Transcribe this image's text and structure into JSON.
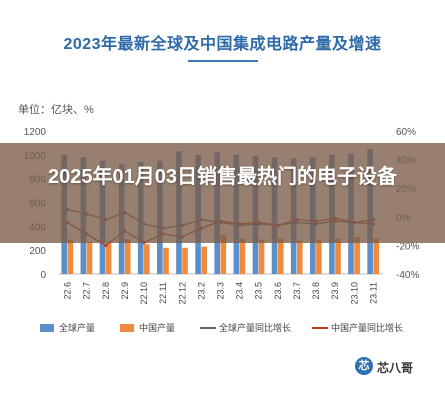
{
  "chart_data": {
    "type": "bar",
    "title": "2023年最新全球及中国集成电路产量及增速",
    "unit_label": "单位：亿块、%",
    "categories": [
      "22.6",
      "22.7",
      "22.8",
      "22.9",
      "22.10",
      "22.11",
      "22.12",
      "23.2",
      "23.3",
      "23.4",
      "23.5",
      "23.6",
      "23.7",
      "23.8",
      "23.9",
      "23.10",
      "23.11"
    ],
    "left_axis": {
      "ylim": [
        0,
        1200
      ],
      "ticks": [
        "0",
        "200",
        "400",
        "600",
        "800",
        "1000",
        "1200"
      ]
    },
    "right_axis": {
      "ylim": [
        -40,
        60
      ],
      "ticks": [
        "-40%",
        "-20%",
        "0%",
        "20%",
        "40%",
        "60%"
      ]
    },
    "series": [
      {
        "name": "全球产量",
        "kind": "bar",
        "axis": "left",
        "color": "#5b8fc9",
        "values": [
          1000,
          980,
          950,
          920,
          940,
          950,
          1030,
          1000,
          1020,
          1000,
          990,
          980,
          970,
          980,
          1000,
          1010,
          1050
        ]
      },
      {
        "name": "中国产量",
        "kind": "bar",
        "axis": "left",
        "color": "#f08a3c",
        "values": [
          290,
          270,
          270,
          290,
          250,
          220,
          220,
          230,
          330,
          300,
          290,
          300,
          280,
          290,
          300,
          310,
          300
        ]
      },
      {
        "name": "全球产量同比增长",
        "kind": "line",
        "axis": "right",
        "color": "#666666",
        "values": [
          5,
          2,
          -2,
          3,
          -5,
          -8,
          -6,
          -2,
          -4,
          -6,
          -5,
          -6,
          -4,
          -5,
          -3,
          -4,
          -2
        ]
      },
      {
        "name": "中国产量同比增长",
        "kind": "line",
        "axis": "right",
        "color": "#c0392b",
        "values": [
          -4,
          -12,
          -20,
          -10,
          -18,
          -12,
          -14,
          -8,
          -3,
          -5,
          -4,
          -6,
          -2,
          -3,
          -1,
          -4,
          -5
        ]
      }
    ],
    "legend": "bottom",
    "grid": false
  },
  "overlay": {
    "headline": "2025年01月03日销售最热门的电子设备"
  },
  "brand": {
    "name": "芯八哥",
    "logo_glyph": "芯"
  }
}
